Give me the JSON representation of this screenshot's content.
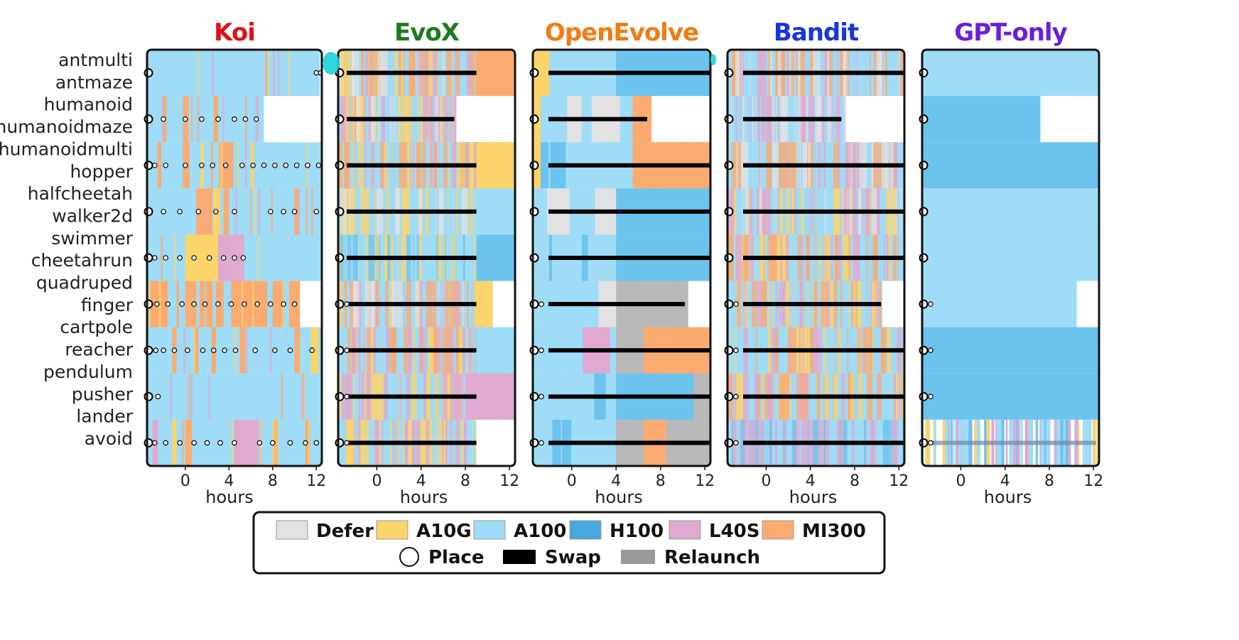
{
  "chart_data": {
    "type": "heatmap",
    "panels": [
      {
        "title": "Koi",
        "title_color": "#e0101c"
      },
      {
        "title": "EvoX",
        "title_color": "#1f7a1f"
      },
      {
        "title": "OpenEvolve",
        "title_color": "#f07c14"
      },
      {
        "title": "Bandit",
        "title_color": "#1636e0"
      },
      {
        "title": "GPT-only",
        "title_color": "#6a1fd8"
      }
    ],
    "tasks": [
      "antmulti",
      "antmaze",
      "humanoid",
      "humanoidmaze",
      "humanoidmulti",
      "hopper",
      "halfcheetah",
      "walker2d",
      "swimmer",
      "cheetahrun",
      "quadruped",
      "finger",
      "cartpole",
      "reacher",
      "pendulum",
      "pusher",
      "lander",
      "avoid"
    ],
    "xticks": [
      0,
      4,
      8,
      12
    ],
    "xlabel": "hours",
    "xlim": [
      -3.5,
      12.5
    ],
    "legend": [
      {
        "label": "Defer",
        "color": "#e2e2e2"
      },
      {
        "label": "A10G",
        "color": "#fdd46a"
      },
      {
        "label": "A100",
        "color": "#9fdcf7"
      },
      {
        "label": "H100",
        "color": "#46a8dc"
      },
      {
        "label": "L40S",
        "color": "#e0a9cf"
      },
      {
        "label": "MI300",
        "color": "#fbab70"
      },
      {
        "label": "Place",
        "color": "#ffffff"
      },
      {
        "label": "Swap",
        "color": "#000000"
      },
      {
        "label": "Relaunch",
        "color": "#999999"
      }
    ]
  }
}
